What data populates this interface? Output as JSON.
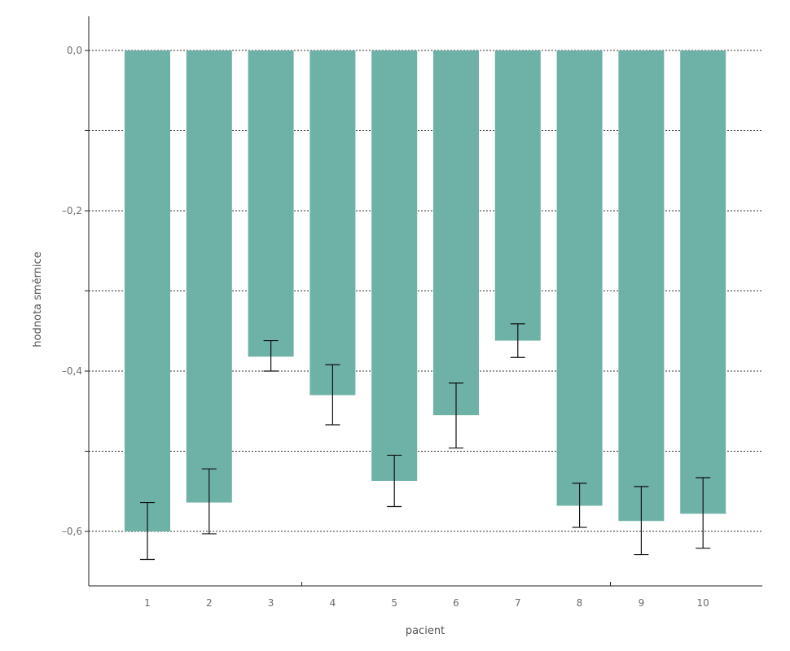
{
  "chart_data": {
    "type": "bar",
    "xlabel": "pacient",
    "ylabel": "hodnota směrnice",
    "categories": [
      "1",
      "2",
      "3",
      "4",
      "5",
      "6",
      "7",
      "8",
      "9",
      "10"
    ],
    "values": [
      -0.6,
      -0.564,
      -0.382,
      -0.43,
      -0.537,
      -0.455,
      -0.362,
      -0.568,
      -0.587,
      -0.578
    ],
    "error_bars": {
      "upper": [
        -0.564,
        -0.522,
        -0.362,
        -0.392,
        -0.505,
        -0.415,
        -0.341,
        -0.54,
        -0.544,
        -0.533
      ],
      "lower": [
        -0.635,
        -0.603,
        -0.4,
        -0.467,
        -0.569,
        -0.496,
        -0.383,
        -0.595,
        -0.629,
        -0.621
      ]
    },
    "ylim": [
      -0.66,
      0.0
    ],
    "yticks": [
      0.0,
      -0.1,
      -0.2,
      -0.3,
      -0.4,
      -0.5,
      -0.6
    ],
    "ytick_labels": [
      "0,0",
      "",
      "–0,2",
      "",
      "–0,4",
      "",
      "–0,6"
    ],
    "grid": true,
    "colors": {
      "bar": "#6db1a7",
      "error_bar": "#111111",
      "grid": "#333333"
    }
  }
}
